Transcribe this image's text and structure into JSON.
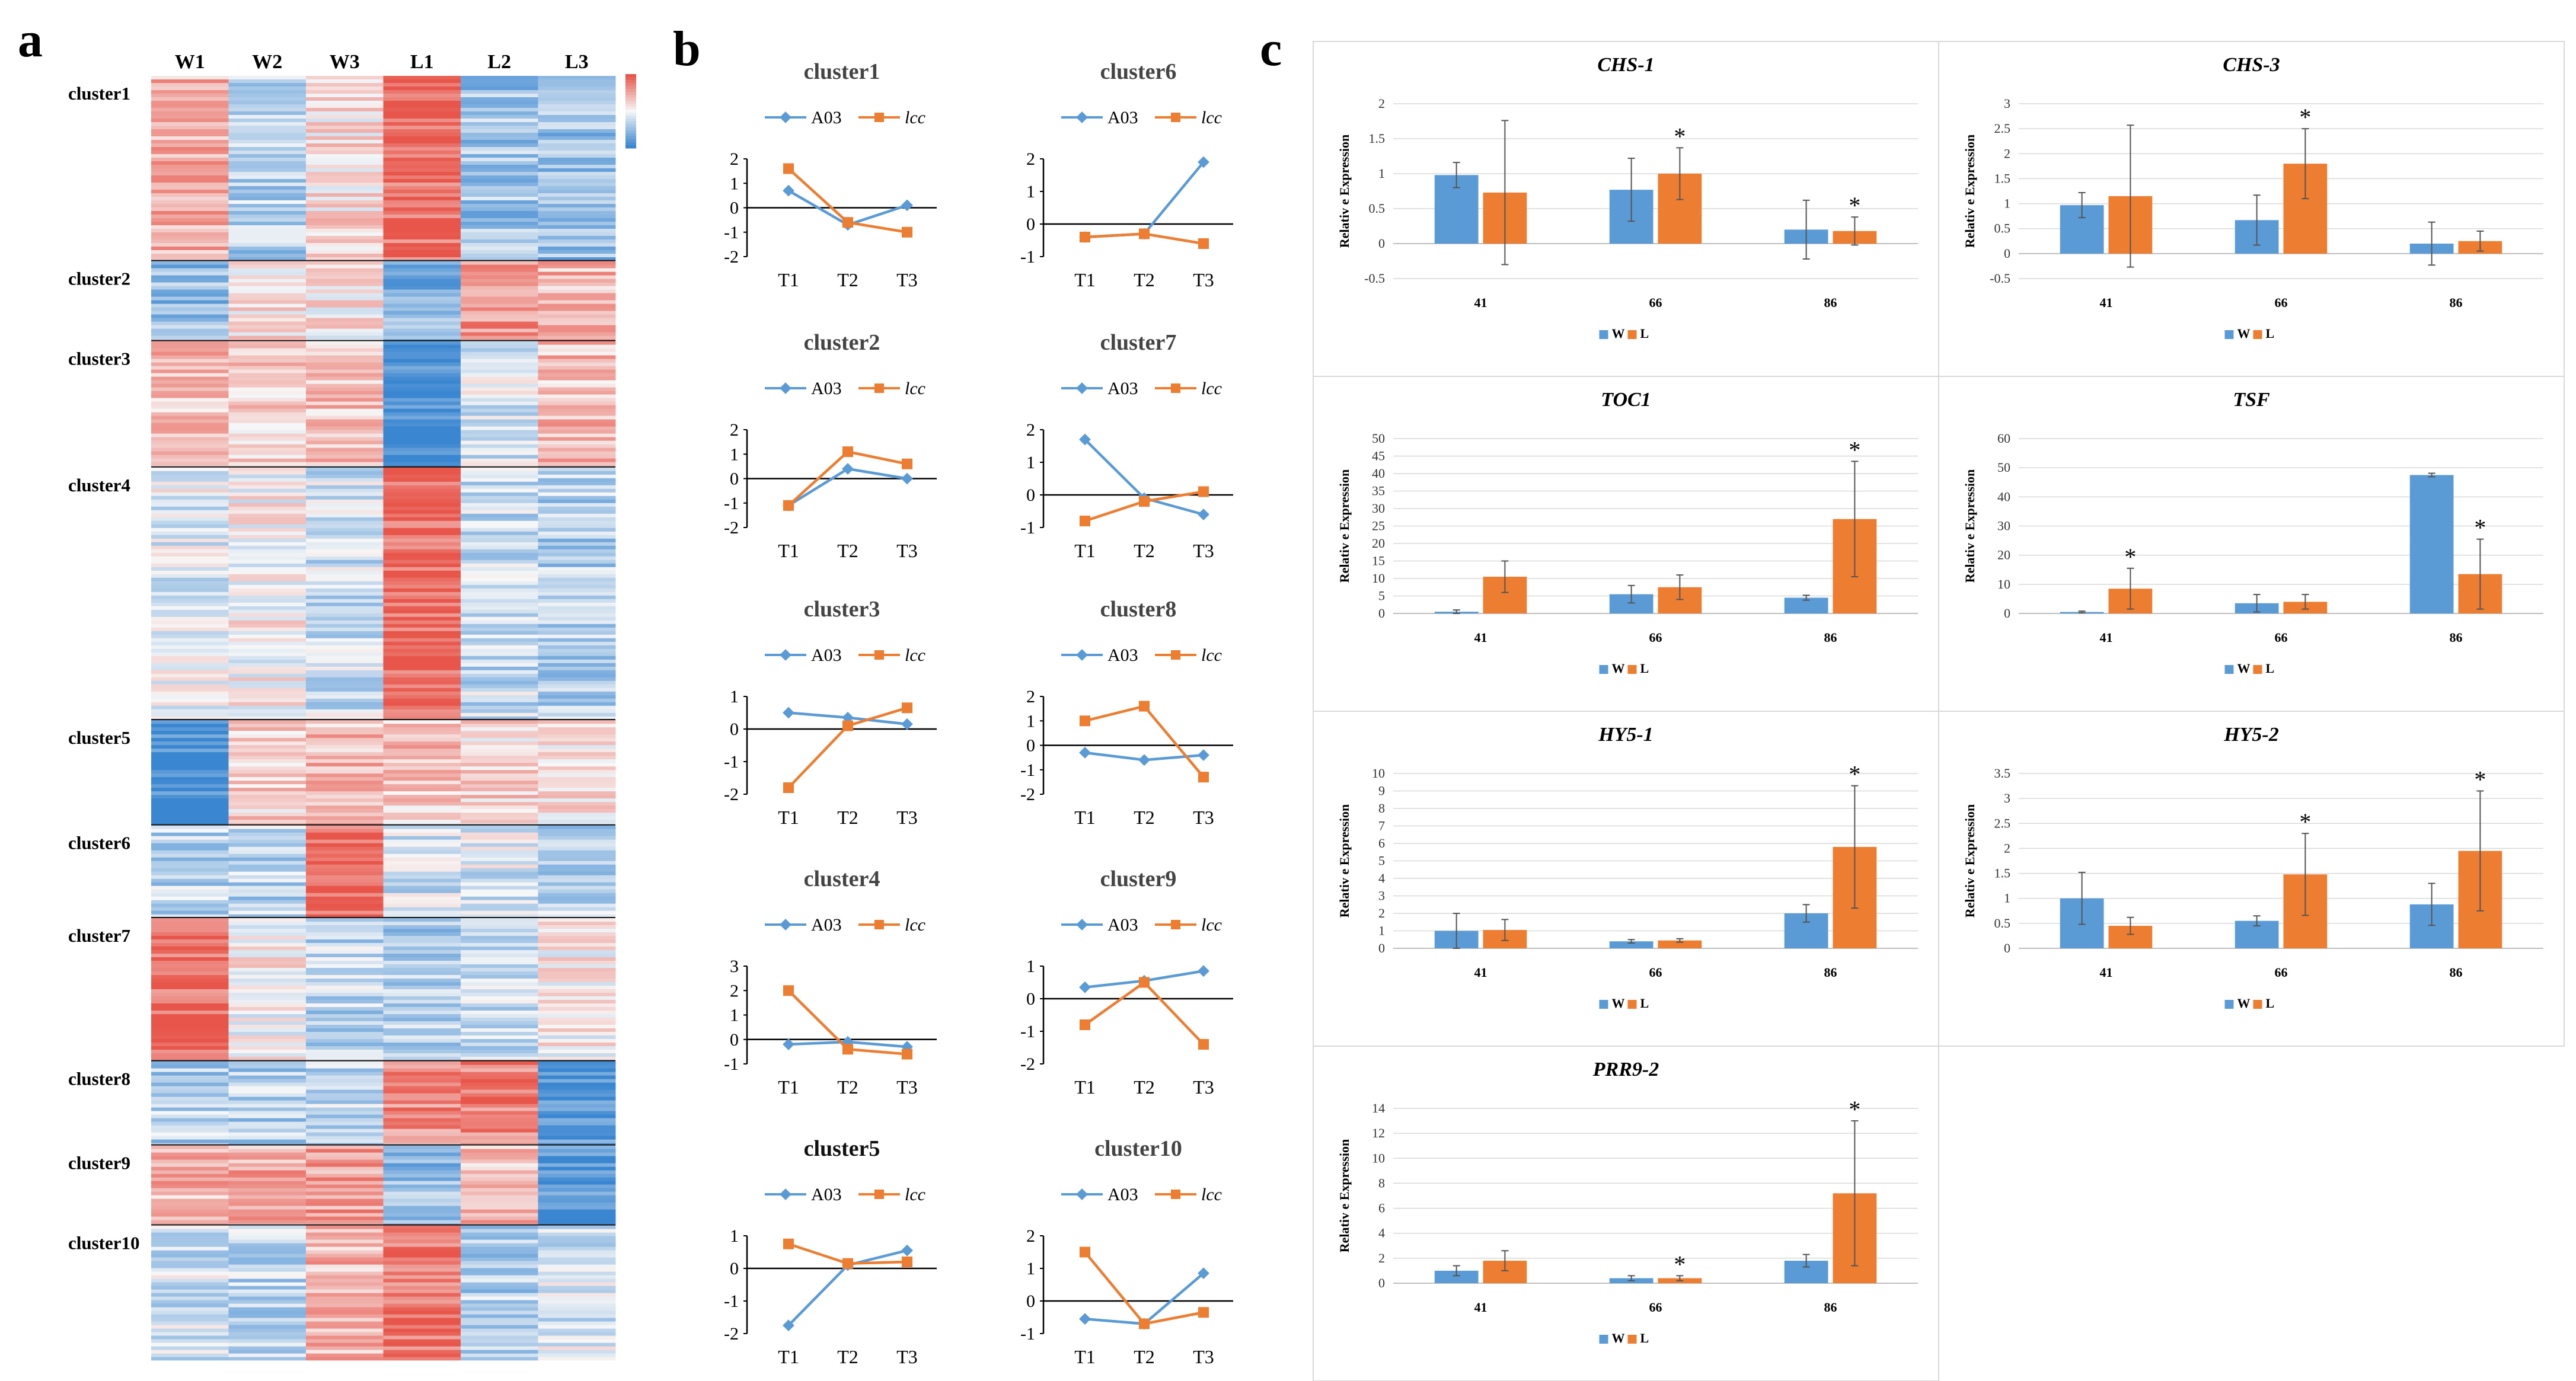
{
  "colors": {
    "a03": "#5b9bd5",
    "lcc": "#ed7d31",
    "W": "#5b9bd5",
    "L": "#ed7d31",
    "heat_low": "#3a86d1",
    "heat_mid": "#f7f7f7",
    "heat_high": "#e8554a"
  },
  "panel_a": {
    "letter": "a",
    "columns": [
      "W1",
      "W2",
      "W3",
      "L1",
      "L2",
      "L3"
    ],
    "clusters": [
      {
        "label": "cluster1",
        "rows": 220,
        "levels": [
          0.45,
          -0.35,
          0.15,
          0.85,
          -0.45,
          -0.5
        ]
      },
      {
        "label": "cluster2",
        "rows": 95,
        "levels": [
          -0.5,
          0.15,
          0.1,
          -0.6,
          0.65,
          0.4
        ]
      },
      {
        "label": "cluster3",
        "rows": 150,
        "levels": [
          0.35,
          0.25,
          0.3,
          -1.0,
          -0.15,
          0.35
        ]
      },
      {
        "label": "cluster4",
        "rows": 300,
        "levels": [
          -0.1,
          0.05,
          -0.2,
          0.9,
          -0.25,
          -0.35
        ]
      },
      {
        "label": "cluster5",
        "rows": 125,
        "levels": [
          -1.0,
          0.25,
          0.35,
          0.3,
          0.2,
          0.1
        ]
      },
      {
        "label": "cluster6",
        "rows": 110,
        "levels": [
          -0.3,
          -0.3,
          0.9,
          -0.2,
          -0.15,
          -0.3
        ]
      },
      {
        "label": "cluster7",
        "rows": 170,
        "levels": [
          0.85,
          0.05,
          -0.3,
          -0.4,
          -0.25,
          0.05
        ]
      },
      {
        "label": "cluster8",
        "rows": 100,
        "levels": [
          -0.35,
          -0.35,
          -0.3,
          0.65,
          0.75,
          -0.85
        ]
      },
      {
        "label": "cluster9",
        "rows": 95,
        "levels": [
          0.4,
          0.45,
          0.55,
          -0.5,
          0.35,
          -0.9
        ]
      },
      {
        "label": "cluster10",
        "rows": 160,
        "levels": [
          -0.2,
          -0.3,
          0.4,
          0.75,
          -0.35,
          -0.15
        ]
      }
    ]
  },
  "panel_b": {
    "letter": "b",
    "legend": [
      "A03",
      "lcc"
    ],
    "categories": [
      "T1",
      "T2",
      "T3"
    ]
  },
  "panel_c": {
    "letter": "c",
    "legend": [
      "W",
      "L"
    ],
    "categories": [
      "41",
      "66",
      "86"
    ],
    "ylabel": "Relativ e Expression"
  },
  "chart_data": [
    {
      "type": "heatmap",
      "title": "",
      "columns": [
        "W1",
        "W2",
        "W3",
        "L1",
        "L2",
        "L3"
      ],
      "row_groups": [
        "cluster1",
        "cluster2",
        "cluster3",
        "cluster4",
        "cluster5",
        "cluster6",
        "cluster7",
        "cluster8",
        "cluster9",
        "cluster10"
      ]
    },
    {
      "type": "line",
      "title": "cluster1",
      "categories": [
        "T1",
        "T2",
        "T3"
      ],
      "ylim": [
        -2,
        2
      ],
      "yticks": [
        -2,
        -1,
        0,
        1,
        2
      ],
      "series": [
        {
          "name": "A03",
          "values": [
            0.7,
            -0.7,
            0.1
          ]
        },
        {
          "name": "lcc",
          "values": [
            1.6,
            -0.6,
            -1.0
          ]
        }
      ]
    },
    {
      "type": "line",
      "title": "cluster6",
      "categories": [
        "T1",
        "T2",
        "T3"
      ],
      "ylim": [
        -1,
        2
      ],
      "yticks": [
        -1,
        0,
        1,
        2
      ],
      "series": [
        {
          "name": "A03",
          "values": [
            -0.4,
            -0.3,
            1.9
          ]
        },
        {
          "name": "lcc",
          "values": [
            -0.4,
            -0.3,
            -0.6
          ]
        }
      ]
    },
    {
      "type": "line",
      "title": "cluster2",
      "categories": [
        "T1",
        "T2",
        "T3"
      ],
      "ylim": [
        -2,
        2
      ],
      "yticks": [
        -2,
        -1,
        0,
        1,
        2
      ],
      "series": [
        {
          "name": "A03",
          "values": [
            -1.1,
            0.4,
            0.0
          ]
        },
        {
          "name": "lcc",
          "values": [
            -1.1,
            1.1,
            0.6
          ]
        }
      ]
    },
    {
      "type": "line",
      "title": "cluster7",
      "categories": [
        "T1",
        "T2",
        "T3"
      ],
      "ylim": [
        -1,
        2
      ],
      "yticks": [
        -1,
        0,
        1,
        2
      ],
      "series": [
        {
          "name": "A03",
          "values": [
            1.7,
            -0.1,
            -0.6
          ]
        },
        {
          "name": "lcc",
          "values": [
            -0.8,
            -0.2,
            0.1
          ]
        }
      ]
    },
    {
      "type": "line",
      "title": "cluster3",
      "categories": [
        "T1",
        "T2",
        "T3"
      ],
      "ylim": [
        -2,
        1
      ],
      "yticks": [
        -2,
        -1,
        0,
        1
      ],
      "series": [
        {
          "name": "A03",
          "values": [
            0.5,
            0.35,
            0.15
          ]
        },
        {
          "name": "lcc",
          "values": [
            -1.8,
            0.1,
            0.65
          ]
        }
      ]
    },
    {
      "type": "line",
      "title": "cluster8",
      "categories": [
        "T1",
        "T2",
        "T3"
      ],
      "ylim": [
        -2,
        2
      ],
      "yticks": [
        -2,
        -1,
        0,
        1,
        2
      ],
      "series": [
        {
          "name": "A03",
          "values": [
            -0.3,
            -0.6,
            -0.4
          ]
        },
        {
          "name": "lcc",
          "values": [
            1.0,
            1.6,
            -1.3
          ]
        }
      ]
    },
    {
      "type": "line",
      "title": "cluster4",
      "categories": [
        "T1",
        "T2",
        "T3"
      ],
      "ylim": [
        -1,
        3
      ],
      "yticks": [
        -1,
        0,
        1,
        2,
        3
      ],
      "series": [
        {
          "name": "A03",
          "values": [
            -0.2,
            -0.1,
            -0.3
          ]
        },
        {
          "name": "lcc",
          "values": [
            2.0,
            -0.4,
            -0.6
          ]
        }
      ]
    },
    {
      "type": "line",
      "title": "cluster9",
      "categories": [
        "T1",
        "T2",
        "T3"
      ],
      "ylim": [
        -2,
        1
      ],
      "yticks": [
        -2,
        -1,
        0,
        1
      ],
      "series": [
        {
          "name": "A03",
          "values": [
            0.35,
            0.55,
            0.85
          ]
        },
        {
          "name": "lcc",
          "values": [
            -0.8,
            0.5,
            -1.4
          ]
        }
      ]
    },
    {
      "type": "line",
      "title": "cluster5",
      "categories": [
        "T1",
        "T2",
        "T3"
      ],
      "ylim": [
        -2,
        1
      ],
      "yticks": [
        -2,
        -1,
        0,
        1
      ],
      "series": [
        {
          "name": "A03",
          "values": [
            -1.75,
            0.1,
            0.55
          ]
        },
        {
          "name": "lcc",
          "values": [
            0.75,
            0.15,
            0.2
          ]
        }
      ]
    },
    {
      "type": "line",
      "title": "cluster10",
      "categories": [
        "T1",
        "T2",
        "T3"
      ],
      "ylim": [
        -1,
        2
      ],
      "yticks": [
        -1,
        0,
        1,
        2
      ],
      "series": [
        {
          "name": "A03",
          "values": [
            -0.55,
            -0.7,
            0.85
          ]
        },
        {
          "name": "lcc",
          "values": [
            1.5,
            -0.7,
            -0.35
          ]
        }
      ]
    },
    {
      "type": "bar",
      "title": "CHS-1",
      "categories": [
        "41",
        "66",
        "86"
      ],
      "ylabel": "Relativ e Expression",
      "ylim": [
        -0.5,
        2
      ],
      "yticks": [
        -0.5,
        0,
        0.5,
        1,
        1.5,
        2
      ],
      "series": [
        {
          "name": "W",
          "values": [
            0.98,
            0.77,
            0.2
          ],
          "errors": [
            0.18,
            0.45,
            0.42
          ]
        },
        {
          "name": "L",
          "values": [
            0.73,
            1.0,
            0.18
          ],
          "errors": [
            1.03,
            0.37,
            0.2
          ]
        }
      ],
      "significance": {
        "L": [
          false,
          true,
          true
        ]
      }
    },
    {
      "type": "bar",
      "title": "CHS-3",
      "categories": [
        "41",
        "66",
        "86"
      ],
      "ylabel": "Relativ e Expression",
      "ylim": [
        -0.5,
        3
      ],
      "yticks": [
        -0.5,
        0,
        0.5,
        1,
        1.5,
        2,
        2.5,
        3
      ],
      "series": [
        {
          "name": "W",
          "values": [
            0.97,
            0.67,
            0.2
          ],
          "errors": [
            0.25,
            0.5,
            0.43
          ]
        },
        {
          "name": "L",
          "values": [
            1.15,
            1.8,
            0.25
          ],
          "errors": [
            1.42,
            0.7,
            0.2
          ]
        }
      ],
      "significance": {
        "L": [
          false,
          true,
          false
        ]
      }
    },
    {
      "type": "bar",
      "title": "TOC1",
      "categories": [
        "41",
        "66",
        "86"
      ],
      "ylabel": "Relativ e Expression",
      "ylim": [
        0,
        50
      ],
      "yticks": [
        0,
        5,
        10,
        15,
        20,
        25,
        30,
        35,
        40,
        45,
        50
      ],
      "series": [
        {
          "name": "W",
          "values": [
            0.5,
            5.5,
            4.5
          ],
          "errors": [
            0.5,
            2.5,
            0.7
          ]
        },
        {
          "name": "L",
          "values": [
            10.5,
            7.5,
            27.0
          ],
          "errors": [
            4.5,
            3.5,
            16.5
          ]
        }
      ],
      "significance": {
        "L": [
          false,
          false,
          true
        ]
      }
    },
    {
      "type": "bar",
      "title": "TSF",
      "categories": [
        "41",
        "66",
        "86"
      ],
      "ylabel": "Relativ e Expression",
      "ylim": [
        0,
        60
      ],
      "yticks": [
        0,
        10,
        20,
        30,
        40,
        50,
        60
      ],
      "series": [
        {
          "name": "W",
          "values": [
            0.5,
            3.5,
            47.5
          ],
          "errors": [
            0.3,
            3.0,
            0.6
          ]
        },
        {
          "name": "L",
          "values": [
            8.5,
            4.0,
            13.5
          ],
          "errors": [
            7.0,
            2.5,
            12.0
          ]
        }
      ],
      "significance": {
        "L": [
          true,
          false,
          true
        ]
      }
    },
    {
      "type": "bar",
      "title": "HY5-1",
      "categories": [
        "41",
        "66",
        "86"
      ],
      "ylabel": "Relativ e Expression",
      "ylim": [
        0,
        10
      ],
      "yticks": [
        0,
        1,
        2,
        3,
        4,
        5,
        6,
        7,
        8,
        9,
        10
      ],
      "series": [
        {
          "name": "W",
          "values": [
            1.0,
            0.4,
            2.0
          ],
          "errors": [
            1.0,
            0.1,
            0.5
          ]
        },
        {
          "name": "L",
          "values": [
            1.05,
            0.45,
            5.8
          ],
          "errors": [
            0.6,
            0.1,
            3.5
          ]
        }
      ],
      "significance": {
        "L": [
          false,
          false,
          true
        ]
      }
    },
    {
      "type": "bar",
      "title": "HY5-2",
      "categories": [
        "41",
        "66",
        "86"
      ],
      "ylabel": "Relativ e Expression",
      "ylim": [
        0,
        3.5
      ],
      "yticks": [
        0,
        0.5,
        1,
        1.5,
        2,
        2.5,
        3,
        3.5
      ],
      "series": [
        {
          "name": "W",
          "values": [
            1.0,
            0.55,
            0.88
          ],
          "errors": [
            0.52,
            0.1,
            0.42
          ]
        },
        {
          "name": "L",
          "values": [
            0.45,
            1.48,
            1.95
          ],
          "errors": [
            0.17,
            0.82,
            1.2
          ]
        }
      ],
      "significance": {
        "L": [
          false,
          true,
          true
        ]
      }
    },
    {
      "type": "bar",
      "title": "PRR9-2",
      "categories": [
        "41",
        "66",
        "86"
      ],
      "ylabel": "Relativ e Expression",
      "ylim": [
        0,
        14
      ],
      "yticks": [
        0,
        2,
        4,
        6,
        8,
        10,
        12,
        14
      ],
      "series": [
        {
          "name": "W",
          "values": [
            1.0,
            0.4,
            1.8
          ],
          "errors": [
            0.4,
            0.2,
            0.5
          ]
        },
        {
          "name": "L",
          "values": [
            1.8,
            0.4,
            7.2
          ],
          "errors": [
            0.8,
            0.2,
            5.8
          ]
        }
      ],
      "significance": {
        "L": [
          false,
          true,
          true
        ]
      }
    }
  ]
}
